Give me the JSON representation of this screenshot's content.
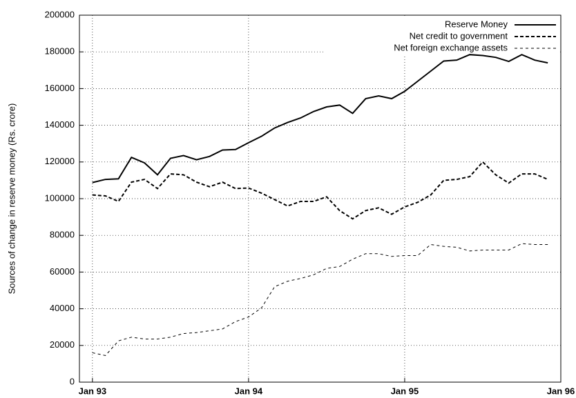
{
  "chart_data": {
    "type": "line",
    "y_label": "Sources of change in reserve money (Rs. crore)",
    "x": [
      0,
      1,
      2,
      3,
      4,
      5,
      6,
      7,
      8,
      9,
      10,
      11,
      12,
      13,
      14,
      15,
      16,
      17,
      18,
      19,
      20,
      21,
      22,
      23,
      24,
      25,
      26,
      27,
      28,
      29,
      30,
      31,
      32,
      33,
      34,
      35
    ],
    "xlim": [
      -1,
      36
    ],
    "xticks": [
      {
        "value": 0,
        "label": "Jan 93"
      },
      {
        "value": 12,
        "label": "Jan 94"
      },
      {
        "value": 24,
        "label": "Jan 95"
      },
      {
        "value": 36,
        "label": "Jan 96"
      }
    ],
    "ylim": [
      0,
      200000
    ],
    "yticks": [
      0,
      20000,
      40000,
      60000,
      80000,
      100000,
      120000,
      140000,
      160000,
      180000,
      200000
    ],
    "grid": true,
    "legend": "top-right",
    "series": [
      {
        "name": "Reserve Money",
        "color": "#000000",
        "dash": "solid",
        "width": 2,
        "values": [
          108800,
          110500,
          110800,
          122500,
          119500,
          113000,
          122000,
          123500,
          121200,
          123000,
          126500,
          126800,
          130500,
          134000,
          138500,
          141500,
          144000,
          147500,
          150000,
          151000,
          146500,
          154500,
          156000,
          154500,
          158500,
          164000,
          169500,
          175000,
          175500,
          178500,
          178000,
          177000,
          174800,
          178500,
          175500,
          174000
        ]
      },
      {
        "name": "Net credit to government",
        "color": "#000000",
        "dash": "dashed",
        "width": 2,
        "values": [
          102000,
          101500,
          98500,
          109000,
          110500,
          105500,
          113500,
          113000,
          109000,
          106500,
          109000,
          105500,
          105800,
          103000,
          99500,
          96000,
          98500,
          98500,
          101000,
          93500,
          89000,
          93500,
          95000,
          91500,
          95500,
          98000,
          102000,
          110000,
          110500,
          112000,
          120000,
          113000,
          108500,
          113500,
          113500,
          110500
        ]
      },
      {
        "name": "Net foreign exchange assets",
        "color": "#000000",
        "dash": "dashed",
        "width": 1,
        "values": [
          16000,
          14500,
          22500,
          24500,
          23500,
          23500,
          24500,
          26500,
          27000,
          28000,
          29000,
          33000,
          35500,
          40500,
          52000,
          55000,
          56500,
          58500,
          62000,
          63000,
          67000,
          70000,
          70000,
          68500,
          69000,
          69000,
          75000,
          74000,
          73500,
          71500,
          72000,
          72000,
          72000,
          75500,
          75000,
          75000
        ]
      }
    ]
  }
}
